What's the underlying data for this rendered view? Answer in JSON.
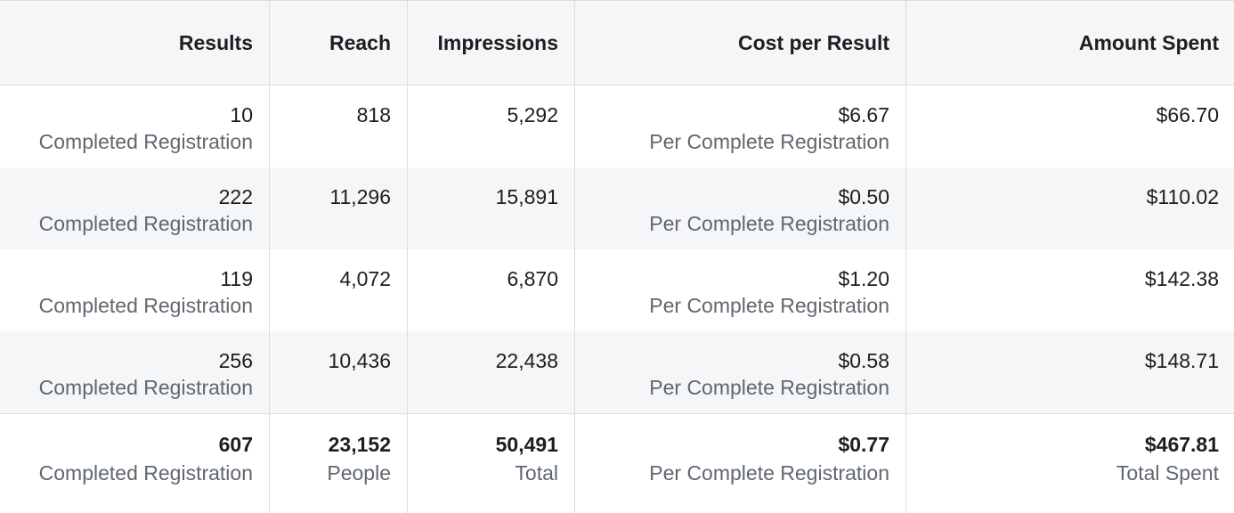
{
  "columns": [
    "Results",
    "Reach",
    "Impressions",
    "Cost per Result",
    "Amount Spent"
  ],
  "rows": [
    {
      "results": "10",
      "results_label": "Completed Registration",
      "reach": "818",
      "impressions": "5,292",
      "cost": "$6.67",
      "cost_label": "Per Complete Registration",
      "spent": "$66.70"
    },
    {
      "results": "222",
      "results_label": "Completed Registration",
      "reach": "11,296",
      "impressions": "15,891",
      "cost": "$0.50",
      "cost_label": "Per Complete Registration",
      "spent": "$110.02"
    },
    {
      "results": "119",
      "results_label": "Completed Registration",
      "reach": "4,072",
      "impressions": "6,870",
      "cost": "$1.20",
      "cost_label": "Per Complete Registration",
      "spent": "$142.38"
    },
    {
      "results": "256",
      "results_label": "Completed Registration",
      "reach": "10,436",
      "impressions": "22,438",
      "cost": "$0.58",
      "cost_label": "Per Complete Registration",
      "spent": "$148.71"
    }
  ],
  "summary": {
    "results": "607",
    "results_label": "Completed Registration",
    "reach": "23,152",
    "reach_label": "People",
    "impressions": "50,491",
    "impressions_label": "Total",
    "cost": "$0.77",
    "cost_label": "Per Complete Registration",
    "spent": "$467.81",
    "spent_label": "Total Spent"
  }
}
